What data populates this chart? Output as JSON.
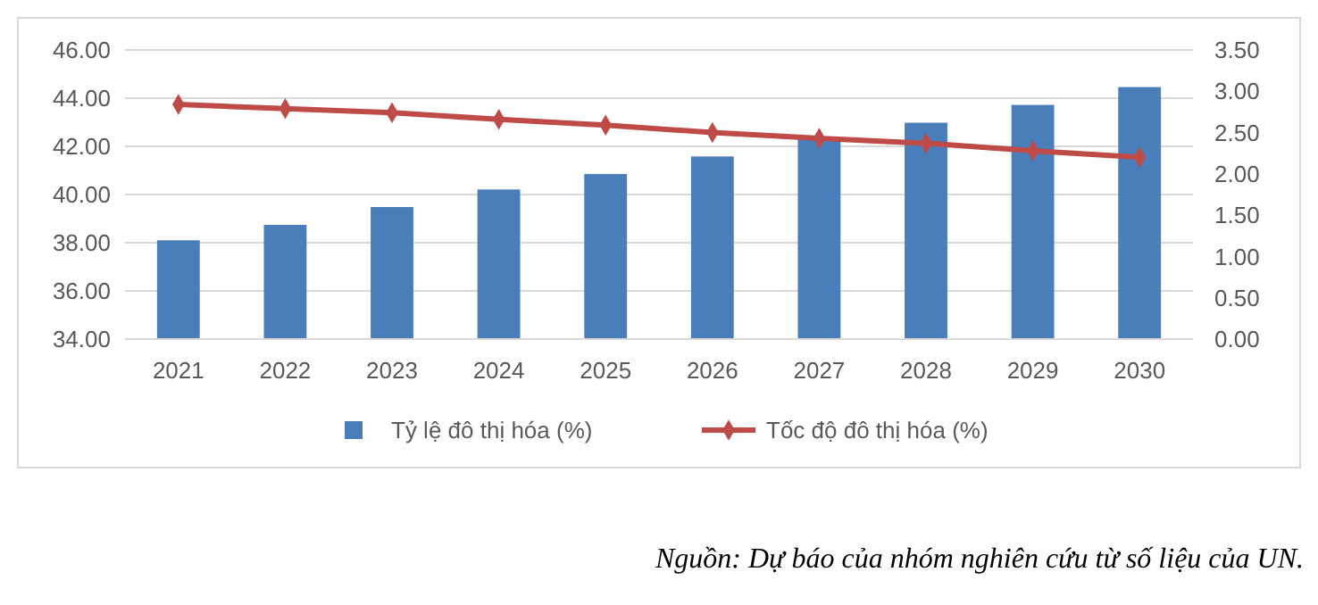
{
  "chart_data": {
    "type": "bar",
    "categories": [
      "2021",
      "2022",
      "2023",
      "2024",
      "2025",
      "2026",
      "2027",
      "2028",
      "2029",
      "2030"
    ],
    "series": [
      {
        "name": "Tỷ lệ đô thị hóa (%)",
        "color": "#4a7ebb",
        "values": [
          38.1,
          38.74,
          39.48,
          40.21,
          40.85,
          41.58,
          42.3,
          42.98,
          43.72,
          44.46
        ]
      },
      {
        "name": "Tốc độ đô thị hóa (%)",
        "type": "line",
        "axis": "y2",
        "color": "#be4b48",
        "values": [
          2.84,
          2.79,
          2.74,
          2.66,
          2.59,
          2.5,
          2.43,
          2.37,
          2.28,
          2.2
        ]
      }
    ],
    "ylim": [
      34,
      46
    ],
    "yticks": [
      {
        "value": 34,
        "label": "34.00"
      },
      {
        "value": 36,
        "label": "36.00"
      },
      {
        "value": 38,
        "label": "38.00"
      },
      {
        "value": 40,
        "label": "40.00"
      },
      {
        "value": 42,
        "label": "42.00"
      },
      {
        "value": 44,
        "label": "44.00"
      },
      {
        "value": 46,
        "label": "46.00"
      }
    ],
    "y2lim": [
      0,
      3.5
    ],
    "y2ticks": [
      {
        "value": 0,
        "label": "0.00"
      },
      {
        "value": 0.5,
        "label": "0.50"
      },
      {
        "value": 1,
        "label": "1.00"
      },
      {
        "value": 1.5,
        "label": "1.50"
      },
      {
        "value": 2,
        "label": "2.00"
      },
      {
        "value": 2.5,
        "label": "2.50"
      },
      {
        "value": 3,
        "label": "3.00"
      },
      {
        "value": 3.5,
        "label": "3.50"
      }
    ],
    "grid": "y",
    "legend": "bottom",
    "marker": "diamond",
    "annotations": [
      "Nguồn: Dự báo của nhóm nghiên cứu từ số liệu của UN."
    ]
  }
}
